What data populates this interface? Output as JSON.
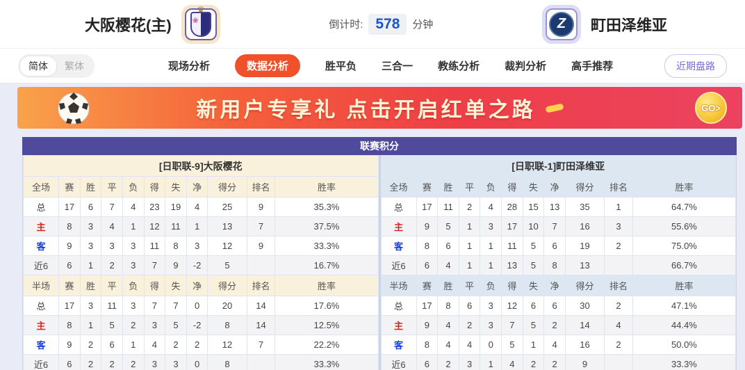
{
  "header": {
    "home_team": "大阪樱花(主)",
    "away_team": "町田泽维亚",
    "away_logo_letter": "Z",
    "countdown_label": "倒计时:",
    "countdown_value": "578",
    "countdown_unit": "分钟"
  },
  "nav": {
    "lang_options": [
      {
        "label": "简体",
        "active": true
      },
      {
        "label": "繁体",
        "active": false
      }
    ],
    "tabs": [
      {
        "label": "现场分析",
        "active": false
      },
      {
        "label": "数据分析",
        "active": true
      },
      {
        "label": "胜平负",
        "active": false
      },
      {
        "label": "三合一",
        "active": false
      },
      {
        "label": "教练分析",
        "active": false
      },
      {
        "label": "裁判分析",
        "active": false
      },
      {
        "label": "高手推荐",
        "active": false
      }
    ],
    "recent_button": "近期盘路"
  },
  "banner": {
    "text": "新用户专享礼  点击开启红单之路",
    "go_label": "GO>"
  },
  "panel": {
    "title": "联赛积分"
  },
  "tables": {
    "left": {
      "team_header": "[日职联-9]大阪樱花",
      "sections": [
        {
          "label": "全场",
          "columns": [
            "赛",
            "胜",
            "平",
            "负",
            "得",
            "失",
            "净",
            "得分",
            "排名",
            "胜率"
          ],
          "rows": [
            {
              "label": "总",
              "type": "total",
              "values": [
                "17",
                "6",
                "7",
                "4",
                "23",
                "19",
                "4",
                "25",
                "9",
                "35.3%"
              ]
            },
            {
              "label": "主",
              "type": "home",
              "values": [
                "8",
                "3",
                "4",
                "1",
                "12",
                "11",
                "1",
                "13",
                "7",
                "37.5%"
              ]
            },
            {
              "label": "客",
              "type": "away",
              "values": [
                "9",
                "3",
                "3",
                "3",
                "11",
                "8",
                "3",
                "12",
                "9",
                "33.3%"
              ]
            },
            {
              "label": "近6",
              "type": "recent",
              "values": [
                "6",
                "1",
                "2",
                "3",
                "7",
                "9",
                "-2",
                "5",
                "",
                "16.7%"
              ]
            }
          ]
        },
        {
          "label": "半场",
          "columns": [
            "赛",
            "胜",
            "平",
            "负",
            "得",
            "失",
            "净",
            "得分",
            "排名",
            "胜率"
          ],
          "rows": [
            {
              "label": "总",
              "type": "total",
              "values": [
                "17",
                "3",
                "11",
                "3",
                "7",
                "7",
                "0",
                "20",
                "14",
                "17.6%"
              ]
            },
            {
              "label": "主",
              "type": "home",
              "values": [
                "8",
                "1",
                "5",
                "2",
                "3",
                "5",
                "-2",
                "8",
                "14",
                "12.5%"
              ]
            },
            {
              "label": "客",
              "type": "away",
              "values": [
                "9",
                "2",
                "6",
                "1",
                "4",
                "2",
                "2",
                "12",
                "7",
                "22.2%"
              ]
            },
            {
              "label": "近6",
              "type": "recent",
              "values": [
                "6",
                "2",
                "2",
                "2",
                "3",
                "3",
                "0",
                "8",
                "",
                "33.3%"
              ]
            }
          ]
        }
      ]
    },
    "right": {
      "team_header": "[日职联-1]町田泽维亚",
      "sections": [
        {
          "label": "全场",
          "columns": [
            "赛",
            "胜",
            "平",
            "负",
            "得",
            "失",
            "净",
            "得分",
            "排名",
            "胜率"
          ],
          "rows": [
            {
              "label": "总",
              "type": "total",
              "values": [
                "17",
                "11",
                "2",
                "4",
                "28",
                "15",
                "13",
                "35",
                "1",
                "64.7%"
              ]
            },
            {
              "label": "主",
              "type": "home",
              "values": [
                "9",
                "5",
                "1",
                "3",
                "17",
                "10",
                "7",
                "16",
                "3",
                "55.6%"
              ]
            },
            {
              "label": "客",
              "type": "away",
              "values": [
                "8",
                "6",
                "1",
                "1",
                "11",
                "5",
                "6",
                "19",
                "2",
                "75.0%"
              ]
            },
            {
              "label": "近6",
              "type": "recent",
              "values": [
                "6",
                "4",
                "1",
                "1",
                "13",
                "5",
                "8",
                "13",
                "",
                "66.7%"
              ]
            }
          ]
        },
        {
          "label": "半场",
          "columns": [
            "赛",
            "胜",
            "平",
            "负",
            "得",
            "失",
            "净",
            "得分",
            "排名",
            "胜率"
          ],
          "rows": [
            {
              "label": "总",
              "type": "total",
              "values": [
                "17",
                "8",
                "6",
                "3",
                "12",
                "6",
                "6",
                "30",
                "2",
                "47.1%"
              ]
            },
            {
              "label": "主",
              "type": "home",
              "values": [
                "9",
                "4",
                "2",
                "3",
                "7",
                "5",
                "2",
                "14",
                "4",
                "44.4%"
              ]
            },
            {
              "label": "客",
              "type": "away",
              "values": [
                "8",
                "4",
                "4",
                "0",
                "5",
                "1",
                "4",
                "16",
                "2",
                "50.0%"
              ]
            },
            {
              "label": "近6",
              "type": "recent",
              "values": [
                "6",
                "2",
                "3",
                "1",
                "4",
                "2",
                "2",
                "9",
                "",
                "33.3%"
              ]
            }
          ]
        }
      ]
    }
  },
  "colors": {
    "accent_tab": "#f0502a",
    "panel_title_bg": "#504a9c",
    "home_label": "#d9251d",
    "away_label": "#1a3fd6",
    "countdown_value": "#1a56c8",
    "left_header_bg": "#faf1dc",
    "right_header_bg": "#dce7f2",
    "banner_gradient": [
      "#f9a24b",
      "#ee3f47",
      "#ec4260"
    ]
  }
}
